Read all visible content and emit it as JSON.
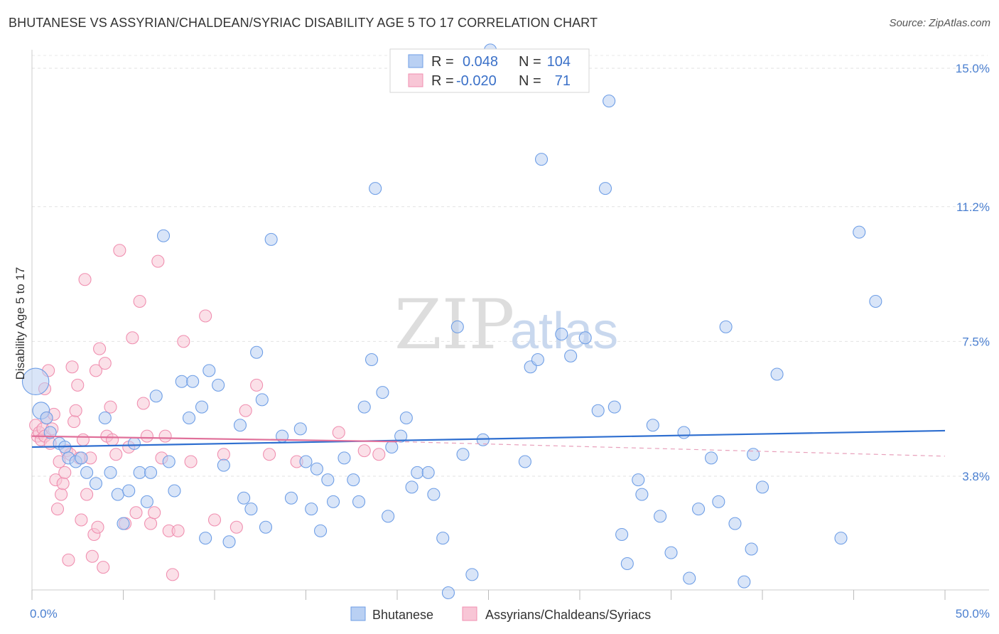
{
  "header": {
    "title": "BHUTANESE VS ASSYRIAN/CHALDEAN/SYRIAC DISABILITY AGE 5 TO 17 CORRELATION CHART",
    "source": "Source: ZipAtlas.com"
  },
  "legend": {
    "rows": [
      {
        "r_label": "R =",
        "r_value": "0.048",
        "n_label": "N =",
        "n_value": "104",
        "color": "#6e9ee6"
      },
      {
        "r_label": "R =",
        "r_value": "-0.020",
        "n_label": "N =",
        "n_value": "71",
        "color": "#f08fb0"
      }
    ]
  },
  "watermark": {
    "zip": "ZIP",
    "atlas": "atlas"
  },
  "chart_data": {
    "type": "scatter",
    "title": "BHUTANESE VS ASSYRIAN/CHALDEAN/SYRIAC DISABILITY AGE 5 TO 17 CORRELATION CHART",
    "ylabel": "Disability Age 5 to 17",
    "xlabel": "",
    "xlim": [
      0,
      50
    ],
    "ylim": [
      0,
      15.5
    ],
    "y_ticks": [
      {
        "value": 3.8,
        "label": "3.8%"
      },
      {
        "value": 7.5,
        "label": "7.5%"
      },
      {
        "value": 11.2,
        "label": "11.2%"
      },
      {
        "value": 15.0,
        "label": "15.0%"
      }
    ],
    "x_tick_labels": [
      {
        "value": 0,
        "label": "0.0%"
      },
      {
        "value": 50,
        "label": "50.0%"
      }
    ],
    "x_minor_ticks": [
      0,
      5,
      10,
      15,
      20,
      25,
      30,
      35,
      40,
      45,
      50
    ],
    "grid": true,
    "legend_position": "top-center",
    "series": [
      {
        "name": "Bhutanese",
        "color": "#6e9ee6",
        "fill": "#b9d0f3",
        "trend": {
          "x": [
            0,
            50
          ],
          "y": [
            4.6,
            5.05
          ]
        },
        "points": [
          [
            0.2,
            6.4,
            22
          ],
          [
            0.5,
            5.6,
            14
          ],
          [
            0.8,
            5.4,
            10
          ],
          [
            1.0,
            5.0,
            10
          ],
          [
            1.5,
            4.7,
            10
          ],
          [
            1.8,
            4.6,
            10
          ],
          [
            2.0,
            4.3,
            10
          ],
          [
            2.4,
            4.2,
            10
          ],
          [
            2.7,
            4.3,
            10
          ],
          [
            3.0,
            3.9,
            10
          ],
          [
            3.5,
            3.6,
            10
          ],
          [
            4.0,
            5.4,
            10
          ],
          [
            4.3,
            3.9,
            10
          ],
          [
            4.7,
            3.3,
            10
          ],
          [
            5.0,
            2.5,
            10
          ],
          [
            5.3,
            3.4,
            10
          ],
          [
            5.6,
            4.7,
            10
          ],
          [
            5.9,
            3.9,
            10
          ],
          [
            6.3,
            3.1,
            10
          ],
          [
            6.5,
            3.9,
            10
          ],
          [
            6.8,
            6.0,
            10
          ],
          [
            7.2,
            10.4,
            10
          ],
          [
            7.5,
            4.2,
            10
          ],
          [
            7.8,
            3.4,
            10
          ],
          [
            8.2,
            6.4,
            10
          ],
          [
            8.6,
            5.4,
            10
          ],
          [
            8.8,
            6.4,
            10
          ],
          [
            9.3,
            5.7,
            10
          ],
          [
            9.5,
            2.1,
            10
          ],
          [
            9.7,
            6.7,
            10
          ],
          [
            10.2,
            6.3,
            10
          ],
          [
            10.5,
            4.1,
            10
          ],
          [
            10.8,
            2.0,
            10
          ],
          [
            11.4,
            5.2,
            10
          ],
          [
            11.6,
            3.2,
            10
          ],
          [
            12.0,
            2.9,
            10
          ],
          [
            12.3,
            7.2,
            10
          ],
          [
            12.6,
            5.9,
            10
          ],
          [
            12.8,
            2.4,
            10
          ],
          [
            13.1,
            10.3,
            10
          ],
          [
            13.7,
            4.9,
            10
          ],
          [
            14.2,
            3.2,
            10
          ],
          [
            14.7,
            5.1,
            10
          ],
          [
            15.0,
            4.2,
            10
          ],
          [
            15.3,
            2.9,
            10
          ],
          [
            15.6,
            4.0,
            10
          ],
          [
            15.8,
            2.3,
            10
          ],
          [
            16.2,
            3.7,
            10
          ],
          [
            16.5,
            3.1,
            10
          ],
          [
            17.1,
            4.3,
            10
          ],
          [
            17.6,
            3.7,
            10
          ],
          [
            17.9,
            3.1,
            10
          ],
          [
            18.2,
            5.7,
            10
          ],
          [
            18.6,
            7.0,
            10
          ],
          [
            18.8,
            11.7,
            10
          ],
          [
            19.2,
            6.1,
            10
          ],
          [
            19.5,
            2.7,
            10
          ],
          [
            19.7,
            4.6,
            10
          ],
          [
            20.2,
            4.9,
            10
          ],
          [
            20.5,
            5.4,
            10
          ],
          [
            20.8,
            3.5,
            10
          ],
          [
            21.1,
            3.9,
            10
          ],
          [
            21.7,
            3.9,
            10
          ],
          [
            22.0,
            3.3,
            10
          ],
          [
            22.5,
            2.1,
            10
          ],
          [
            22.8,
            0.6,
            10
          ],
          [
            23.3,
            7.9,
            10
          ],
          [
            23.6,
            4.4,
            10
          ],
          [
            24.1,
            1.1,
            10
          ],
          [
            24.7,
            4.8,
            10
          ],
          [
            25.1,
            15.5,
            10
          ],
          [
            27.0,
            4.2,
            10
          ],
          [
            27.3,
            6.8,
            10
          ],
          [
            27.7,
            7.0,
            10
          ],
          [
            27.9,
            12.5,
            10
          ],
          [
            29.0,
            7.7,
            10
          ],
          [
            29.5,
            7.1,
            10
          ],
          [
            30.3,
            7.6,
            10
          ],
          [
            31.0,
            5.6,
            10
          ],
          [
            31.4,
            11.7,
            10
          ],
          [
            31.6,
            14.1,
            10
          ],
          [
            31.9,
            5.7,
            10
          ],
          [
            32.3,
            2.2,
            10
          ],
          [
            32.6,
            1.4,
            10
          ],
          [
            33.2,
            3.7,
            10
          ],
          [
            33.4,
            3.3,
            10
          ],
          [
            34.0,
            5.2,
            10
          ],
          [
            34.4,
            2.7,
            10
          ],
          [
            35.0,
            1.7,
            10
          ],
          [
            35.7,
            5.0,
            10
          ],
          [
            36.0,
            1.0,
            10
          ],
          [
            36.5,
            2.9,
            10
          ],
          [
            37.2,
            4.3,
            10
          ],
          [
            37.6,
            3.1,
            10
          ],
          [
            38.0,
            7.9,
            10
          ],
          [
            38.5,
            2.5,
            10
          ],
          [
            39.0,
            0.9,
            10
          ],
          [
            39.4,
            1.8,
            10
          ],
          [
            39.5,
            4.4,
            10
          ],
          [
            40.0,
            3.5,
            10
          ],
          [
            40.8,
            6.6,
            10
          ],
          [
            44.3,
            2.1,
            10
          ],
          [
            45.3,
            10.5,
            10
          ],
          [
            46.2,
            8.6,
            10
          ]
        ]
      },
      {
        "name": "Assyrians/Chaldeans/Syriacs",
        "color": "#f08fb0",
        "fill": "#f8c6d6",
        "trend": {
          "x": [
            0,
            20
          ],
          "y": [
            4.9,
            4.75
          ]
        },
        "trend_dashed": {
          "x": [
            20,
            50
          ],
          "y": [
            4.75,
            4.35
          ]
        },
        "points": [
          [
            0.2,
            5.2,
            10
          ],
          [
            0.3,
            4.9,
            10
          ],
          [
            0.4,
            5.0,
            10
          ],
          [
            0.5,
            4.8,
            10
          ],
          [
            0.6,
            5.1,
            10
          ],
          [
            0.7,
            6.2,
            10
          ],
          [
            0.7,
            4.9,
            10
          ],
          [
            0.8,
            5.4,
            10
          ],
          [
            0.9,
            6.7,
            10
          ],
          [
            1.0,
            4.7,
            10
          ],
          [
            1.1,
            5.1,
            10
          ],
          [
            1.2,
            5.5,
            10
          ],
          [
            1.3,
            3.7,
            10
          ],
          [
            1.4,
            2.9,
            10
          ],
          [
            1.5,
            4.2,
            10
          ],
          [
            1.6,
            3.3,
            10
          ],
          [
            1.7,
            3.6,
            10
          ],
          [
            1.8,
            3.9,
            10
          ],
          [
            1.9,
            4.5,
            10
          ],
          [
            2.0,
            1.5,
            10
          ],
          [
            2.1,
            4.4,
            10
          ],
          [
            2.2,
            6.8,
            10
          ],
          [
            2.3,
            5.3,
            10
          ],
          [
            2.4,
            5.6,
            10
          ],
          [
            2.5,
            6.3,
            10
          ],
          [
            2.6,
            4.3,
            10
          ],
          [
            2.7,
            2.6,
            10
          ],
          [
            2.8,
            4.8,
            10
          ],
          [
            2.9,
            9.2,
            10
          ],
          [
            3.0,
            3.3,
            10
          ],
          [
            3.2,
            4.3,
            10
          ],
          [
            3.3,
            1.6,
            10
          ],
          [
            3.4,
            2.2,
            10
          ],
          [
            3.5,
            6.7,
            10
          ],
          [
            3.6,
            2.4,
            10
          ],
          [
            3.7,
            7.3,
            10
          ],
          [
            3.9,
            1.3,
            10
          ],
          [
            4.0,
            6.9,
            10
          ],
          [
            4.1,
            4.9,
            10
          ],
          [
            4.3,
            5.7,
            10
          ],
          [
            4.4,
            4.8,
            10
          ],
          [
            4.6,
            4.4,
            10
          ],
          [
            4.8,
            10.0,
            10
          ],
          [
            5.1,
            2.5,
            10
          ],
          [
            5.3,
            4.6,
            10
          ],
          [
            5.5,
            7.6,
            10
          ],
          [
            5.7,
            2.8,
            10
          ],
          [
            5.9,
            8.6,
            10
          ],
          [
            6.1,
            5.8,
            10
          ],
          [
            6.3,
            4.9,
            10
          ],
          [
            6.5,
            2.5,
            10
          ],
          [
            6.7,
            2.8,
            10
          ],
          [
            6.9,
            9.7,
            10
          ],
          [
            7.1,
            4.3,
            10
          ],
          [
            7.3,
            4.9,
            10
          ],
          [
            7.5,
            2.3,
            10
          ],
          [
            7.7,
            1.1,
            10
          ],
          [
            8.0,
            2.3,
            10
          ],
          [
            8.3,
            7.5,
            10
          ],
          [
            8.7,
            4.2,
            10
          ],
          [
            9.5,
            8.2,
            10
          ],
          [
            10.0,
            2.6,
            10
          ],
          [
            10.5,
            4.4,
            10
          ],
          [
            11.2,
            2.4,
            10
          ],
          [
            11.7,
            5.6,
            10
          ],
          [
            12.3,
            6.3,
            10
          ],
          [
            13.0,
            4.4,
            10
          ],
          [
            14.5,
            4.2,
            10
          ],
          [
            16.8,
            5.0,
            10
          ],
          [
            18.2,
            4.5,
            10
          ],
          [
            19.0,
            4.4,
            10
          ]
        ]
      }
    ]
  }
}
